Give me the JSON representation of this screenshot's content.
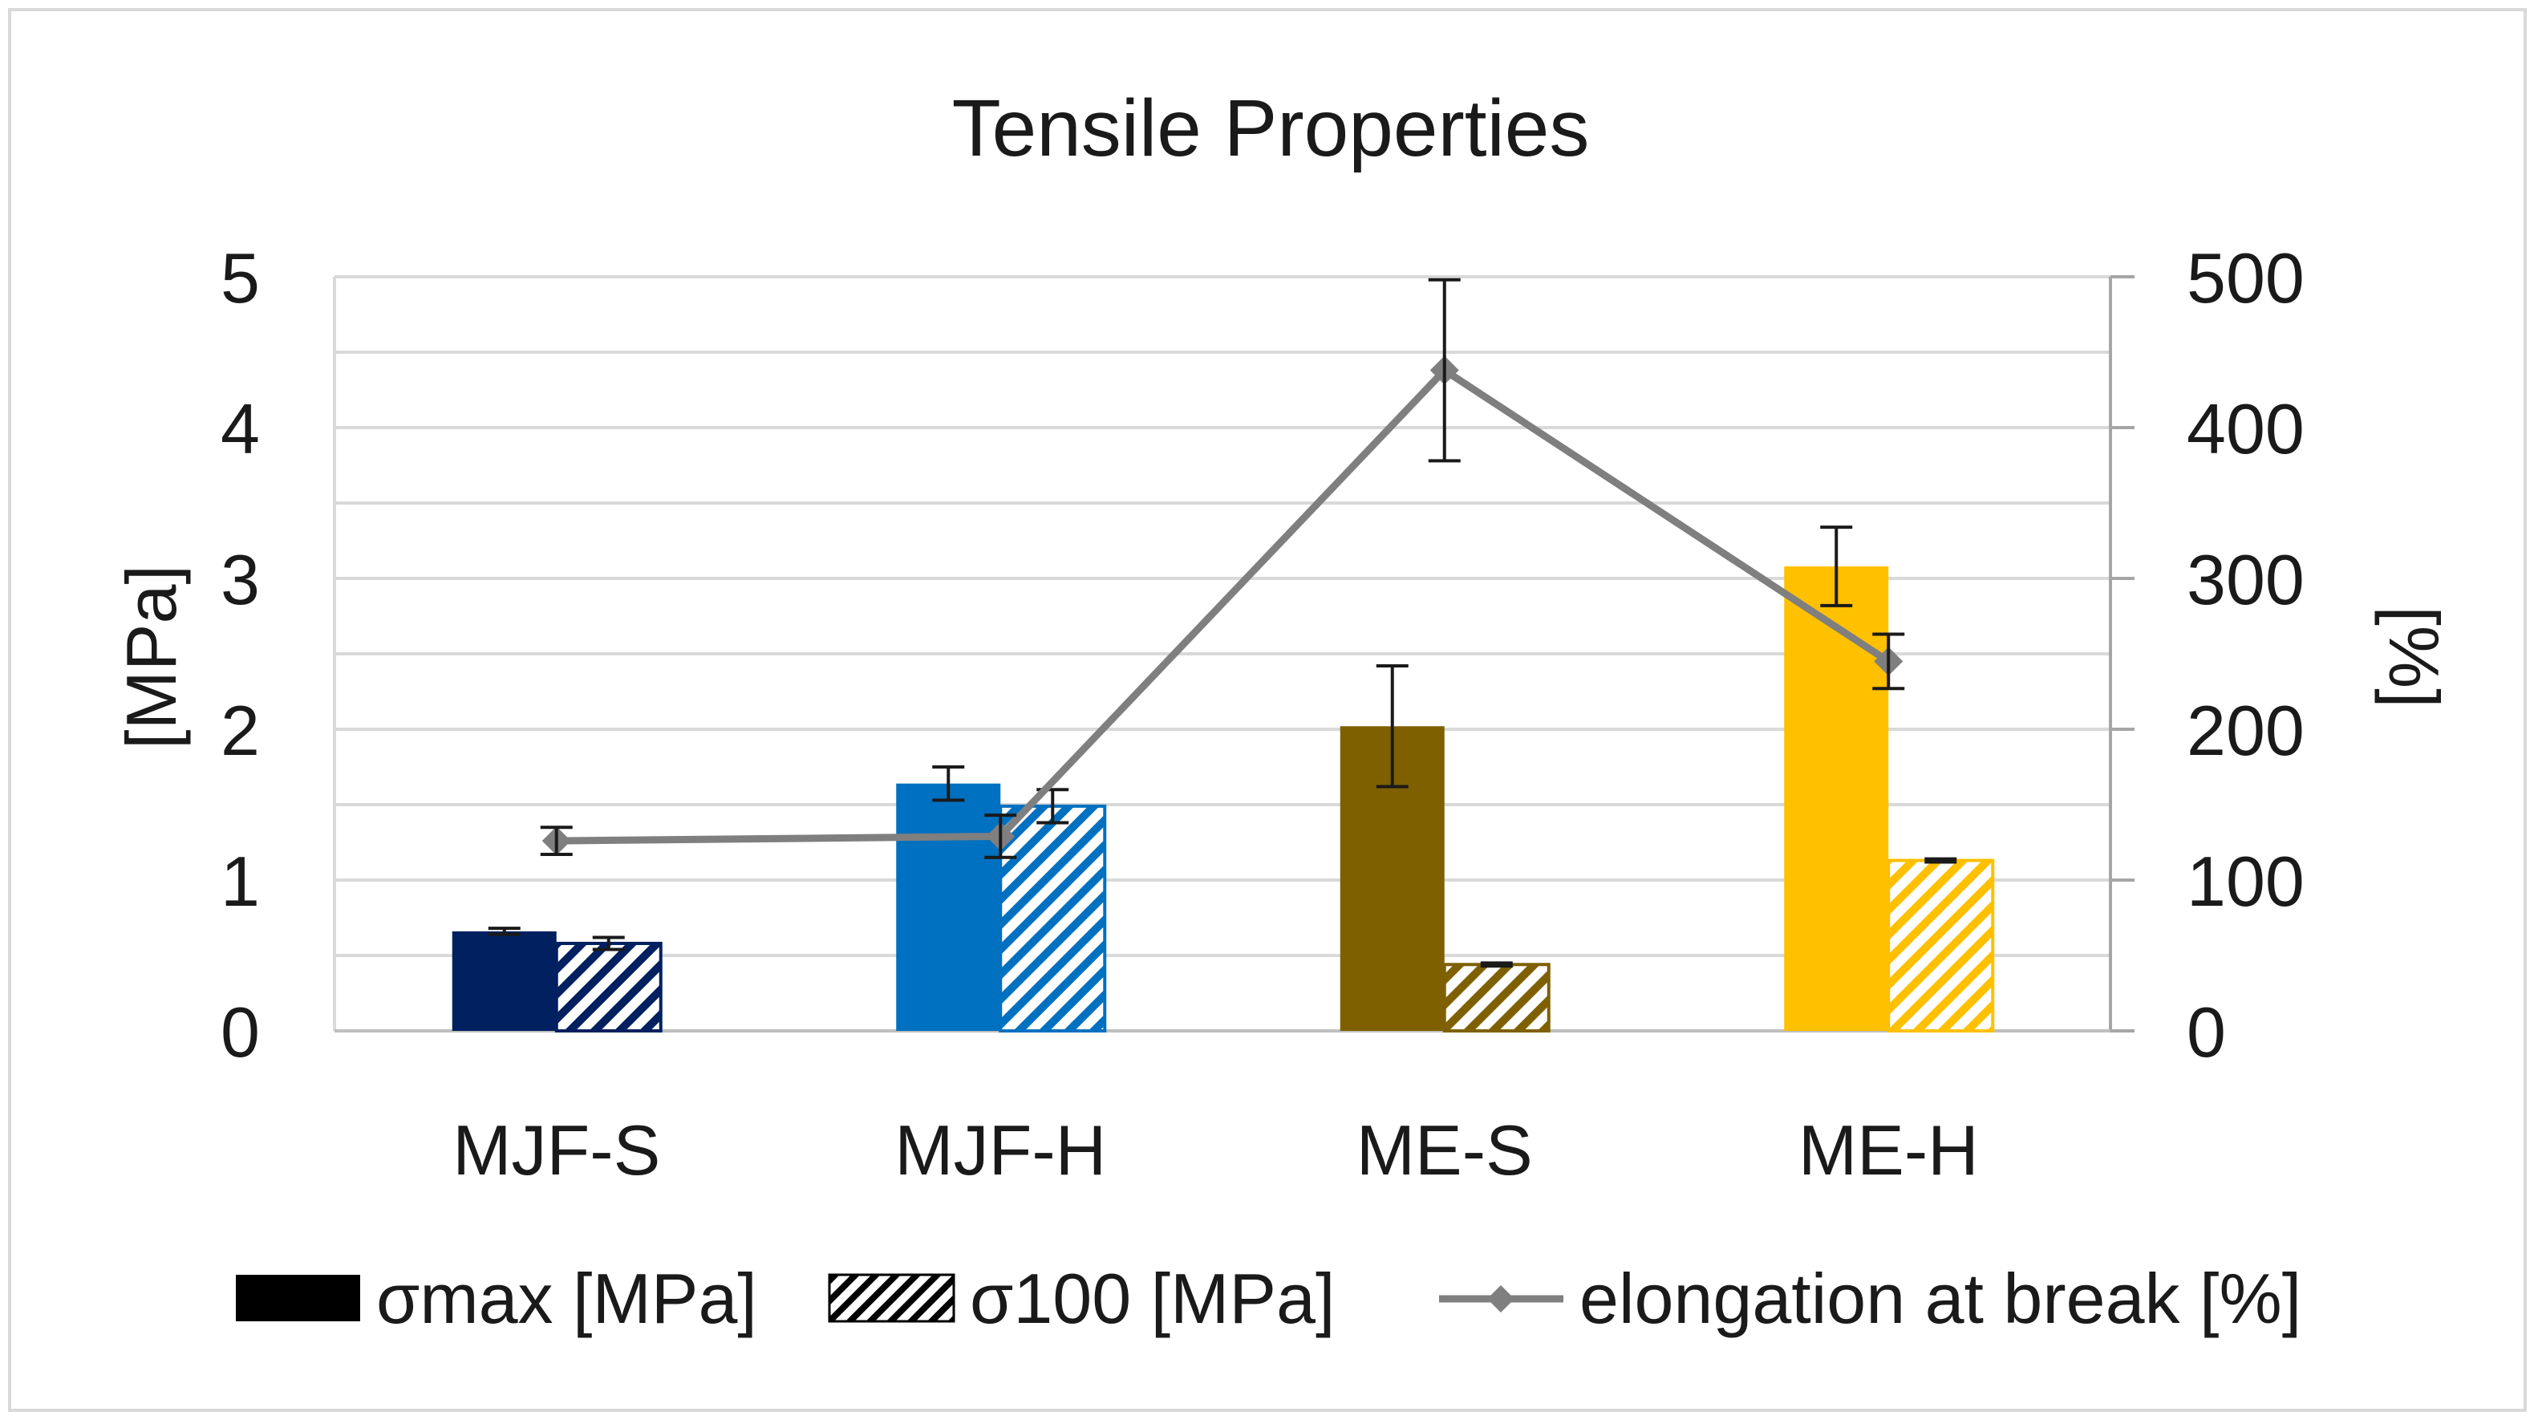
{
  "chart_data": {
    "type": "bar",
    "title": "Tensile Properties",
    "categories": [
      "MJF-S",
      "MJF-H",
      "ME-S",
      "ME-H"
    ],
    "y_left": {
      "label": "[MPa]",
      "lim": [
        0,
        5
      ],
      "ticks": [
        0,
        1,
        2,
        3,
        4,
        5
      ]
    },
    "y_right": {
      "label": "[%]",
      "lim": [
        0,
        500
      ],
      "ticks": [
        0,
        100,
        200,
        300,
        400,
        500
      ]
    },
    "grid": true,
    "legend_position": "bottom",
    "series": [
      {
        "name": "σmax [MPa]",
        "type": "bar",
        "axis": "left",
        "pattern": "solid",
        "values": [
          0.66,
          1.64,
          2.02,
          3.08
        ],
        "errors": [
          0.02,
          0.11,
          0.4,
          0.26
        ]
      },
      {
        "name": "σ100 [MPa]",
        "type": "bar",
        "axis": "left",
        "pattern": "hatched",
        "values": [
          0.58,
          1.49,
          0.44,
          1.13
        ],
        "errors": [
          0.04,
          0.11,
          0.01,
          0.01
        ]
      },
      {
        "name": "elongation at break [%]",
        "type": "line",
        "axis": "right",
        "marker": "diamond",
        "values": [
          126,
          129,
          438,
          245
        ],
        "errors": [
          9,
          14,
          60,
          18
        ]
      }
    ],
    "category_colors": [
      "#002060",
      "#0070c0",
      "#7f6000",
      "#ffc000"
    ],
    "line_color": "#7f7f7f",
    "legend_swatch_color": "#000000"
  }
}
